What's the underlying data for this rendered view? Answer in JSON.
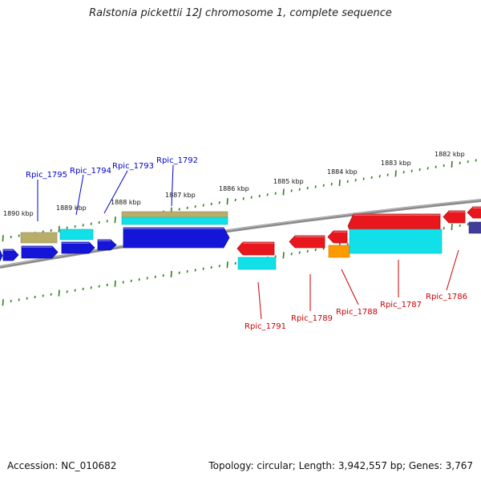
{
  "title": "Ralstonia pickettii 12J chromosome 1, complete sequence",
  "accession": "Accession: NC_010682",
  "summary": "Topology: circular; Length: 3,942,557 bp; Genes: 3,767",
  "colors": {
    "backbone": "#888888",
    "tick": "#2e7d1e",
    "plus_label": "#0000cc",
    "minus_label": "#cc0000",
    "cds_blue": "#1515d8",
    "cds_red": "#e8161d",
    "rrna_cyan": "#11e0e8",
    "gene_tan": "#b9ad6a",
    "orange": "#ff9900",
    "purple": "#3f3c9a"
  },
  "kbp_ticks": [
    "1890 kbp",
    "1889 kbp",
    "1888 kbp",
    "1887 kbp",
    "1886 kbp",
    "1885 kbp",
    "1884 kbp",
    "1883 kbp",
    "1882 kbp"
  ],
  "plus_genes": [
    "Rpic_1795",
    "Rpic_1794",
    "Rpic_1793",
    "Rpic_1792"
  ],
  "minus_genes": [
    "Rpic_1791",
    "Rpic_1789",
    "Rpic_1788",
    "Rpic_1787",
    "Rpic_1786"
  ]
}
